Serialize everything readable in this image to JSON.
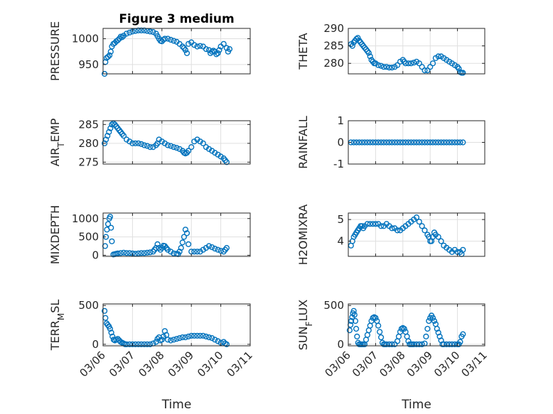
{
  "chart_data": [
    {
      "id": "pressure",
      "type": "scatter",
      "title": "Figure 3 medium",
      "ylabel": "PRESSURE",
      "ylabel_sub": "",
      "xlabel": "",
      "ylim": [
        932,
        1020
      ],
      "yticks": [
        950,
        1000
      ],
      "xlim": [
        0,
        5
      ],
      "xticks": [
        0,
        1,
        2,
        3,
        4,
        5
      ],
      "xticklabels": [
        "03/06",
        "03/07",
        "03/08",
        "03/09",
        "03/10",
        "03/11"
      ],
      "show_xticklabels": false,
      "x": [
        0.05,
        0.08,
        0.12,
        0.17,
        0.22,
        0.26,
        0.3,
        0.35,
        0.4,
        0.45,
        0.5,
        0.55,
        0.6,
        0.65,
        0.7,
        0.8,
        0.9,
        1.0,
        1.1,
        1.2,
        1.3,
        1.4,
        1.5,
        1.6,
        1.7,
        1.8,
        1.85,
        1.9,
        1.95,
        2.0,
        2.05,
        2.1,
        2.2,
        2.3,
        2.4,
        2.5,
        2.6,
        2.7,
        2.75,
        2.8,
        2.85,
        2.9,
        3.0,
        3.1,
        3.2,
        3.3,
        3.4,
        3.5,
        3.6,
        3.65,
        3.7,
        3.75,
        3.8,
        3.85,
        3.9,
        3.95,
        4.0,
        4.1,
        4.2,
        4.25,
        4.3
      ],
      "y": [
        932,
        955,
        963,
        965,
        968,
        975,
        985,
        990,
        992,
        995,
        997,
        1000,
        1004,
        1003,
        1006,
        1010,
        1012,
        1014,
        1015,
        1016,
        1016,
        1016,
        1015,
        1014,
        1013,
        1010,
        1005,
        1000,
        996,
        995,
        998,
        1000,
        1000,
        998,
        996,
        994,
        990,
        985,
        982,
        978,
        972,
        990,
        993,
        988,
        985,
        986,
        985,
        980,
        978,
        972,
        975,
        977,
        975,
        970,
        972,
        978,
        985,
        990,
        982,
        975,
        980
      ],
      "series_color": "#0072BD"
    },
    {
      "id": "theta",
      "type": "scatter",
      "title": "",
      "ylabel": "THETA",
      "ylabel_sub": "",
      "xlabel": "",
      "ylim": [
        277,
        290
      ],
      "yticks": [
        280,
        285,
        290
      ],
      "xlim": [
        0,
        5
      ],
      "xticks": [
        0,
        1,
        2,
        3,
        4,
        5
      ],
      "xticklabels": [
        "03/06",
        "03/07",
        "03/08",
        "03/09",
        "03/10",
        "03/11"
      ],
      "show_xticklabels": false,
      "x": [
        0.1,
        0.15,
        0.2,
        0.25,
        0.3,
        0.35,
        0.4,
        0.45,
        0.5,
        0.55,
        0.6,
        0.65,
        0.7,
        0.75,
        0.8,
        0.85,
        0.9,
        0.95,
        1.0,
        1.1,
        1.2,
        1.3,
        1.4,
        1.5,
        1.6,
        1.7,
        1.8,
        1.9,
        2.0,
        2.05,
        2.1,
        2.2,
        2.3,
        2.4,
        2.5,
        2.6,
        2.7,
        2.8,
        2.9,
        3.0,
        3.1,
        3.2,
        3.3,
        3.4,
        3.5,
        3.6,
        3.7,
        3.8,
        3.9,
        4.0,
        4.05,
        4.1,
        4.15,
        4.2
      ],
      "y": [
        285.5,
        285,
        286,
        286.5,
        287,
        287.3,
        286.5,
        286,
        285.5,
        285,
        284.5,
        284,
        283.5,
        283,
        282,
        281,
        280.5,
        280,
        280,
        279.5,
        279.3,
        279,
        279,
        278.8,
        278.8,
        279,
        279.5,
        280.5,
        281,
        280.5,
        280,
        280,
        280,
        280.2,
        280.5,
        280,
        279,
        278,
        278,
        279,
        280,
        281.5,
        282,
        282,
        281.5,
        281,
        280.5,
        280,
        279.5,
        279,
        278.5,
        277.5,
        277.3,
        277.3
      ],
      "series_color": "#0072BD"
    },
    {
      "id": "airtemp",
      "type": "scatter",
      "title": "",
      "ylabel": "AIR",
      "ylabel_sub": "T",
      "ylabel_rest": "EMP",
      "xlabel": "",
      "ylim": [
        274.5,
        286
      ],
      "yticks": [
        275,
        280,
        285
      ],
      "xlim": [
        0,
        5
      ],
      "xticks": [
        0,
        1,
        2,
        3,
        4,
        5
      ],
      "xticklabels": [
        "03/06",
        "03/07",
        "03/08",
        "03/09",
        "03/10",
        "03/11"
      ],
      "show_xticklabels": false,
      "x": [
        0.05,
        0.1,
        0.15,
        0.2,
        0.25,
        0.3,
        0.35,
        0.4,
        0.45,
        0.5,
        0.55,
        0.6,
        0.65,
        0.7,
        0.8,
        0.9,
        1.0,
        1.1,
        1.2,
        1.3,
        1.4,
        1.5,
        1.6,
        1.7,
        1.8,
        1.85,
        1.9,
        2.0,
        2.1,
        2.2,
        2.3,
        2.4,
        2.5,
        2.6,
        2.7,
        2.75,
        2.8,
        2.85,
        2.9,
        3.0,
        3.1,
        3.2,
        3.3,
        3.4,
        3.5,
        3.6,
        3.7,
        3.8,
        3.9,
        4.0,
        4.1,
        4.15,
        4.2
      ],
      "y": [
        280,
        281,
        282,
        283,
        284,
        285,
        285.3,
        285,
        284.5,
        284,
        283.5,
        283,
        282.5,
        282,
        281,
        280.5,
        280,
        280,
        280,
        279.8,
        279.5,
        279.3,
        279,
        279,
        279.5,
        280,
        281,
        280.5,
        280,
        279.5,
        279.3,
        279,
        278.8,
        278.5,
        278,
        277.5,
        277.3,
        277.5,
        278,
        279,
        280.5,
        281,
        280.5,
        280,
        279,
        278.5,
        278,
        277.5,
        277,
        276.5,
        276,
        275.5,
        275
      ],
      "series_color": "#0072BD"
    },
    {
      "id": "rainfall",
      "type": "scatter",
      "title": "",
      "ylabel": "RAINFALL",
      "ylabel_sub": "",
      "xlabel": "",
      "ylim": [
        -1,
        1
      ],
      "yticks": [
        -1,
        0,
        1
      ],
      "xlim": [
        0,
        5
      ],
      "xticks": [
        0,
        1,
        2,
        3,
        4,
        5
      ],
      "xticklabels": [
        "03/06",
        "03/07",
        "03/08",
        "03/09",
        "03/10",
        "03/11"
      ],
      "show_xticklabels": false,
      "x": [
        0.1,
        0.2,
        0.3,
        0.4,
        0.5,
        0.6,
        0.7,
        0.8,
        0.9,
        1.0,
        1.1,
        1.2,
        1.3,
        1.4,
        1.5,
        1.6,
        1.7,
        1.8,
        1.9,
        2.0,
        2.1,
        2.2,
        2.3,
        2.4,
        2.5,
        2.6,
        2.7,
        2.8,
        2.9,
        3.0,
        3.1,
        3.2,
        3.3,
        3.4,
        3.5,
        3.6,
        3.7,
        3.8,
        3.9,
        4.0,
        4.1,
        4.2
      ],
      "y": [
        0,
        0,
        0,
        0,
        0,
        0,
        0,
        0,
        0,
        0,
        0,
        0,
        0,
        0,
        0,
        0,
        0,
        0,
        0,
        0,
        0,
        0,
        0,
        0,
        0,
        0,
        0,
        0,
        0,
        0,
        0,
        0,
        0,
        0,
        0,
        0,
        0,
        0,
        0,
        0,
        0,
        0
      ],
      "series_color": "#0072BD"
    },
    {
      "id": "mixdepth",
      "type": "scatter",
      "title": "",
      "ylabel": "MIXDEPTH",
      "ylabel_sub": "",
      "xlabel": "",
      "ylim": [
        -30,
        1150
      ],
      "yticks": [
        0,
        500,
        1000
      ],
      "xlim": [
        0,
        5
      ],
      "xticks": [
        0,
        1,
        2,
        3,
        4,
        5
      ],
      "xticklabels": [
        "03/06",
        "03/07",
        "03/08",
        "03/09",
        "03/10",
        "03/11"
      ],
      "show_xticklabels": false,
      "x": [
        0.07,
        0.1,
        0.13,
        0.17,
        0.21,
        0.24,
        0.27,
        0.3,
        0.35,
        0.4,
        0.45,
        0.5,
        0.6,
        0.7,
        0.8,
        0.9,
        1.0,
        1.1,
        1.2,
        1.3,
        1.4,
        1.5,
        1.6,
        1.7,
        1.75,
        1.8,
        1.85,
        1.9,
        1.95,
        2.0,
        2.05,
        2.1,
        2.15,
        2.2,
        2.3,
        2.4,
        2.5,
        2.55,
        2.6,
        2.65,
        2.7,
        2.75,
        2.8,
        2.85,
        2.9,
        3.0,
        3.1,
        3.2,
        3.3,
        3.4,
        3.5,
        3.6,
        3.7,
        3.8,
        3.9,
        4.0,
        4.1,
        4.15,
        4.2
      ],
      "y": [
        250,
        500,
        700,
        850,
        1000,
        1050,
        750,
        380,
        20,
        30,
        40,
        50,
        60,
        70,
        60,
        60,
        50,
        40,
        50,
        60,
        60,
        70,
        80,
        100,
        150,
        200,
        300,
        200,
        150,
        200,
        260,
        250,
        200,
        150,
        100,
        50,
        40,
        30,
        100,
        200,
        350,
        500,
        700,
        600,
        300,
        100,
        100,
        100,
        100,
        150,
        200,
        250,
        220,
        180,
        150,
        120,
        100,
        150,
        200
      ],
      "series_color": "#0072BD"
    },
    {
      "id": "h2omixra",
      "type": "scatter",
      "title": "",
      "ylabel": "H2OMIXRA",
      "ylabel_sub": "",
      "xlabel": "",
      "ylim": [
        3.3,
        5.3
      ],
      "yticks": [
        4,
        5
      ],
      "xlim": [
        0,
        5
      ],
      "xticks": [
        0,
        1,
        2,
        3,
        4,
        5
      ],
      "xticklabels": [
        "03/06",
        "03/07",
        "03/08",
        "03/09",
        "03/10",
        "03/11"
      ],
      "show_xticklabels": false,
      "x": [
        0.1,
        0.15,
        0.2,
        0.25,
        0.3,
        0.35,
        0.4,
        0.45,
        0.5,
        0.55,
        0.6,
        0.7,
        0.8,
        0.9,
        1.0,
        1.1,
        1.2,
        1.3,
        1.4,
        1.5,
        1.6,
        1.7,
        1.8,
        1.9,
        2.0,
        2.1,
        2.2,
        2.3,
        2.4,
        2.5,
        2.6,
        2.7,
        2.8,
        2.9,
        2.95,
        3.0,
        3.05,
        3.1,
        3.15,
        3.2,
        3.3,
        3.4,
        3.5,
        3.6,
        3.7,
        3.8,
        3.9,
        4.0,
        4.1,
        4.15,
        4.2
      ],
      "y": [
        3.8,
        4.0,
        4.2,
        4.3,
        4.4,
        4.5,
        4.6,
        4.7,
        4.7,
        4.6,
        4.7,
        4.8,
        4.8,
        4.8,
        4.8,
        4.8,
        4.7,
        4.7,
        4.8,
        4.7,
        4.6,
        4.6,
        4.5,
        4.5,
        4.6,
        4.7,
        4.8,
        4.9,
        5.0,
        5.1,
        4.9,
        4.7,
        4.5,
        4.3,
        4.2,
        4.0,
        4.0,
        4.2,
        4.4,
        4.3,
        4.2,
        4.0,
        3.8,
        3.7,
        3.6,
        3.5,
        3.6,
        3.5,
        3.5,
        3.4,
        3.6
      ],
      "series_color": "#0072BD"
    },
    {
      "id": "terrmsl",
      "type": "scatter",
      "title": "",
      "ylabel": "TERR",
      "ylabel_sub": "M",
      "ylabel_rest": "SL",
      "xlabel": "Time",
      "ylim": [
        -20,
        520
      ],
      "yticks": [
        0,
        500
      ],
      "xlim": [
        0,
        5
      ],
      "xticks": [
        0,
        1,
        2,
        3,
        4,
        5
      ],
      "xticklabels": [
        "03/06",
        "03/07",
        "03/08",
        "03/09",
        "03/10",
        "03/11"
      ],
      "show_xticklabels": true,
      "x": [
        0.05,
        0.08,
        0.12,
        0.16,
        0.2,
        0.24,
        0.28,
        0.32,
        0.36,
        0.4,
        0.45,
        0.5,
        0.55,
        0.6,
        0.65,
        0.7,
        0.75,
        0.8,
        0.9,
        1.0,
        1.1,
        1.2,
        1.3,
        1.4,
        1.5,
        1.6,
        1.7,
        1.8,
        1.85,
        1.9,
        1.95,
        2.0,
        2.05,
        2.1,
        2.15,
        2.2,
        2.3,
        2.4,
        2.5,
        2.6,
        2.7,
        2.8,
        2.9,
        3.0,
        3.1,
        3.2,
        3.3,
        3.4,
        3.5,
        3.6,
        3.7,
        3.8,
        3.9,
        4.0,
        4.1,
        4.15,
        4.2
      ],
      "y": [
        430,
        340,
        270,
        250,
        230,
        200,
        150,
        100,
        60,
        50,
        60,
        70,
        50,
        30,
        20,
        10,
        0,
        0,
        0,
        0,
        0,
        0,
        0,
        0,
        0,
        0,
        10,
        30,
        70,
        90,
        50,
        60,
        100,
        170,
        120,
        60,
        50,
        60,
        70,
        80,
        90,
        90,
        100,
        110,
        110,
        110,
        110,
        110,
        100,
        90,
        80,
        60,
        40,
        20,
        30,
        10,
        0
      ],
      "series_color": "#0072BD"
    },
    {
      "id": "sunflux",
      "type": "scatter",
      "title": "",
      "ylabel": "SUN",
      "ylabel_sub": "F",
      "ylabel_rest": "LUX",
      "xlabel": "Time",
      "ylim": [
        -20,
        520
      ],
      "yticks": [
        0,
        500
      ],
      "xlim": [
        0,
        5
      ],
      "xticks": [
        0,
        1,
        2,
        3,
        4,
        5
      ],
      "xticklabels": [
        "03/06",
        "03/07",
        "03/08",
        "03/09",
        "03/10",
        "03/11"
      ],
      "show_xticklabels": true,
      "x": [
        0.05,
        0.08,
        0.11,
        0.14,
        0.17,
        0.2,
        0.23,
        0.26,
        0.29,
        0.32,
        0.36,
        0.4,
        0.45,
        0.5,
        0.55,
        0.6,
        0.65,
        0.7,
        0.75,
        0.8,
        0.85,
        0.9,
        0.95,
        1.0,
        1.05,
        1.1,
        1.15,
        1.2,
        1.25,
        1.3,
        1.35,
        1.4,
        1.5,
        1.6,
        1.7,
        1.8,
        1.85,
        1.9,
        1.95,
        2.0,
        2.05,
        2.1,
        2.15,
        2.2,
        2.25,
        2.3,
        2.35,
        2.4,
        2.5,
        2.6,
        2.7,
        2.8,
        2.85,
        2.9,
        2.95,
        3.0,
        3.05,
        3.1,
        3.15,
        3.2,
        3.25,
        3.3,
        3.35,
        3.4,
        3.45,
        3.5,
        3.6,
        3.7,
        3.8,
        3.9,
        4.0,
        4.05,
        4.1,
        4.15,
        4.2
      ],
      "y": [
        180,
        250,
        300,
        350,
        400,
        430,
        380,
        300,
        200,
        100,
        20,
        0,
        0,
        0,
        0,
        0,
        60,
        120,
        180,
        240,
        300,
        340,
        350,
        340,
        300,
        240,
        160,
        90,
        20,
        0,
        0,
        0,
        0,
        0,
        0,
        40,
        100,
        160,
        200,
        210,
        200,
        160,
        100,
        40,
        0,
        0,
        0,
        0,
        0,
        0,
        0,
        10,
        100,
        200,
        300,
        340,
        370,
        340,
        300,
        260,
        200,
        150,
        100,
        50,
        0,
        0,
        0,
        0,
        0,
        0,
        0,
        0,
        30,
        100,
        130
      ],
      "series_color": "#0072BD"
    }
  ]
}
